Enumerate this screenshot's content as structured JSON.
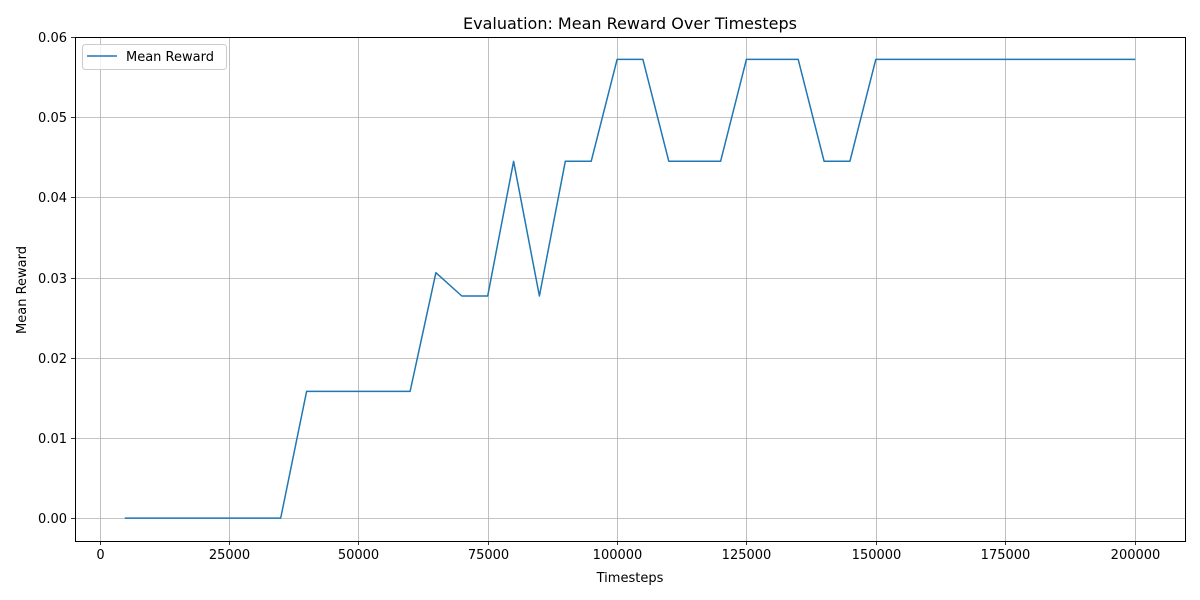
{
  "chart_data": {
    "type": "line",
    "title": "Evaluation: Mean Reward Over Timesteps",
    "xlabel": "Timesteps",
    "ylabel": "Mean Reward",
    "xlim": [
      -4750,
      209750
    ],
    "ylim": [
      -0.00286,
      0.06
    ],
    "xticks": [
      0,
      25000,
      50000,
      75000,
      100000,
      125000,
      150000,
      175000,
      200000
    ],
    "yticks": [
      0.0,
      0.01,
      0.02,
      0.03,
      0.04,
      0.05,
      0.06
    ],
    "xtick_labels": [
      "0",
      "25000",
      "50000",
      "75000",
      "100000",
      "125000",
      "150000",
      "175000",
      "200000"
    ],
    "ytick_labels": [
      "0.00",
      "0.01",
      "0.02",
      "0.03",
      "0.04",
      "0.05",
      "0.06"
    ],
    "grid": true,
    "legend_position": "top-left",
    "series": [
      {
        "name": "Mean Reward",
        "color": "#1f77b4",
        "x": [
          5000,
          10000,
          15000,
          20000,
          25000,
          30000,
          35000,
          40000,
          45000,
          50000,
          55000,
          60000,
          65000,
          70000,
          75000,
          80000,
          85000,
          90000,
          95000,
          100000,
          105000,
          110000,
          115000,
          120000,
          125000,
          130000,
          135000,
          140000,
          145000,
          150000,
          155000,
          160000,
          165000,
          170000,
          175000,
          180000,
          185000,
          190000,
          195000,
          200000
        ],
        "y": [
          0.0,
          0.0,
          0.0,
          0.0,
          0.0,
          0.0,
          0.0,
          0.0158,
          0.0158,
          0.0158,
          0.0158,
          0.0158,
          0.0306,
          0.0277,
          0.0277,
          0.0445,
          0.0277,
          0.0445,
          0.0445,
          0.0572,
          0.0572,
          0.0445,
          0.0445,
          0.0445,
          0.0572,
          0.0572,
          0.0572,
          0.0445,
          0.0445,
          0.0572,
          0.0572,
          0.0572,
          0.0572,
          0.0572,
          0.0572,
          0.0572,
          0.0572,
          0.0572,
          0.0572,
          0.0572
        ]
      }
    ]
  }
}
